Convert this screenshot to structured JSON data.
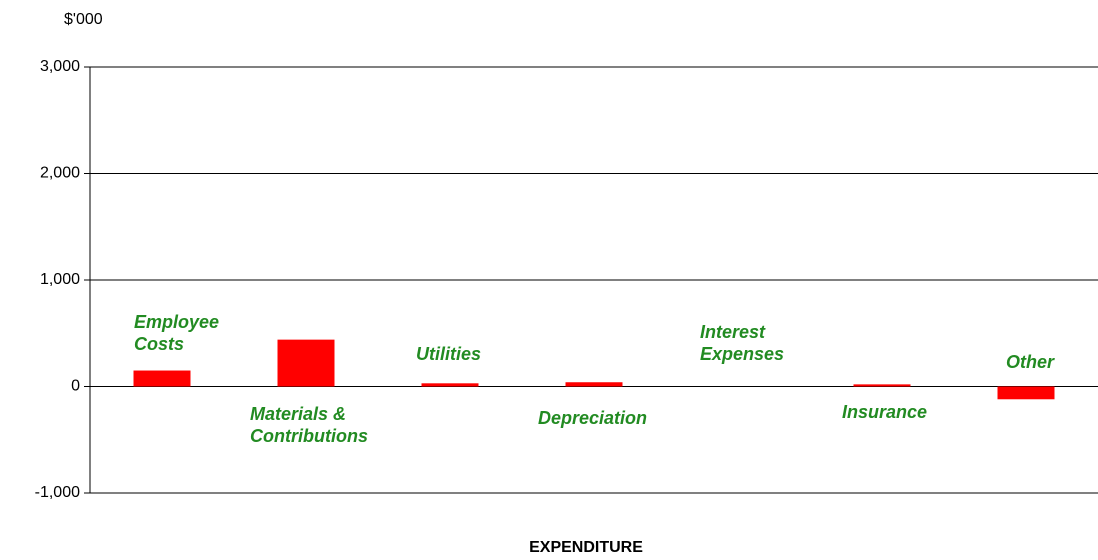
{
  "chart_data": {
    "type": "bar",
    "y_axis_label": "$'000",
    "x_axis_label": "EXPENDITURE",
    "categories": [
      "Employee Costs",
      "Materials & Contributions",
      "Utilities",
      "Depreciation",
      "Interest Expenses",
      "Insurance",
      "Other"
    ],
    "values": [
      150,
      440,
      30,
      40,
      0,
      20,
      -120
    ],
    "color": "#ff0000",
    "ylim": [
      -1000,
      3000
    ],
    "yticks": [
      {
        "value": -1000,
        "label": "-1,000"
      },
      0,
      {
        "value": 1000,
        "label": "1,000"
      },
      {
        "value": 2000,
        "label": "2,000"
      },
      {
        "value": 3000,
        "label": "3,000"
      }
    ],
    "grid": true
  }
}
